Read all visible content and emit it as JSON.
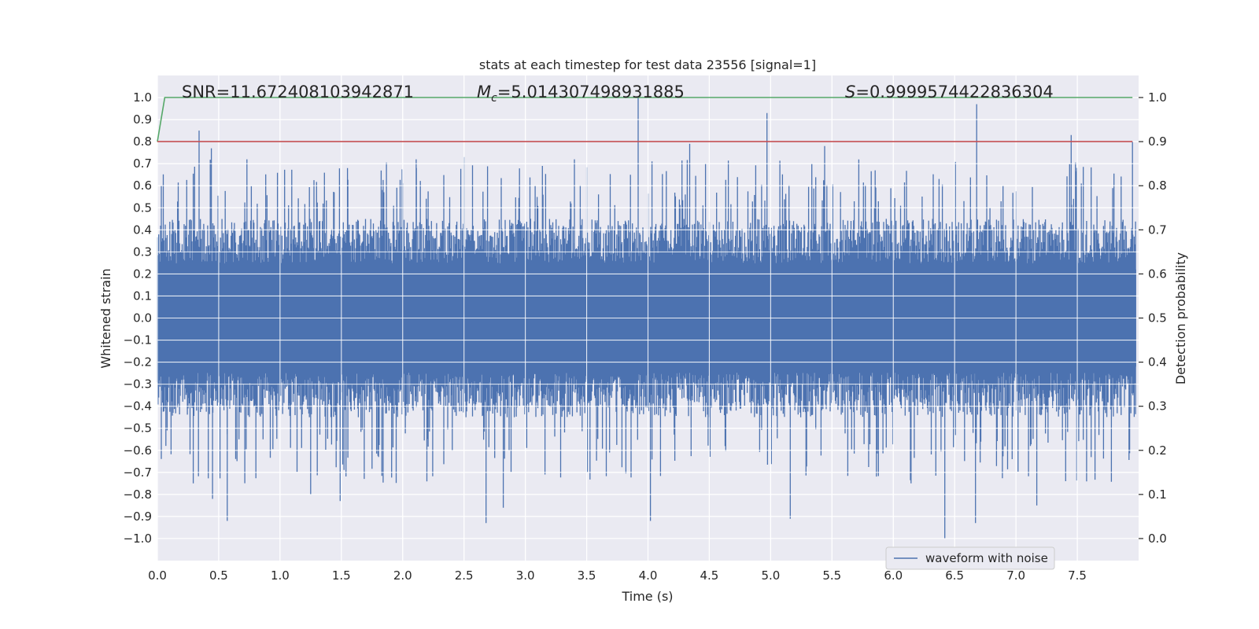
{
  "chart_data": {
    "type": "line",
    "title": "stats at each timestep for test data 23556 [signal=1]",
    "xlabel": "Time (s)",
    "ylabel_left": "Whitened strain",
    "ylabel_right": "Detection probability",
    "xlim": [
      0.0,
      8.0
    ],
    "ylim_left": [
      -1.1,
      1.1
    ],
    "ylim_right": [
      -0.05,
      1.05
    ],
    "x_ticks": [
      "0.0",
      "0.5",
      "1.0",
      "1.5",
      "2.0",
      "2.5",
      "3.0",
      "3.5",
      "4.0",
      "4.5",
      "5.0",
      "5.5",
      "6.0",
      "6.5",
      "7.0",
      "7.5"
    ],
    "y_ticks_left": [
      "1.0",
      "0.9",
      "0.8",
      "0.7",
      "0.6",
      "0.5",
      "0.4",
      "0.3",
      "0.2",
      "0.1",
      "0.0",
      "−0.1",
      "−0.2",
      "−0.3",
      "−0.4",
      "−0.5",
      "−0.6",
      "−0.7",
      "−0.8",
      "−0.9",
      "−1.0"
    ],
    "y_ticks_right": [
      "1.0",
      "0.9",
      "0.8",
      "0.7",
      "0.6",
      "0.5",
      "0.4",
      "0.3",
      "0.2",
      "0.1",
      "0.0"
    ],
    "grid": true,
    "legend_position": "lower-right",
    "annotations": {
      "snr": "SNR=11.672408103942871",
      "mc_symbol": "M",
      "mc_sub": "c",
      "mc_value": "=5.014307498931885",
      "s_symbol": "S",
      "s_value": "=0.9999574422836304"
    },
    "series": [
      {
        "name": "waveform with noise",
        "axis": "left",
        "style": "dense-noise",
        "envelope_upper_typical": 0.45,
        "envelope_lower_typical": -0.45,
        "peaks": [
          {
            "x": 0.34,
            "y": 0.85
          },
          {
            "x": 0.44,
            "y": 0.77
          },
          {
            "x": 0.73,
            "y": 0.72
          },
          {
            "x": 1.55,
            "y": 0.68
          },
          {
            "x": 2.11,
            "y": 0.72
          },
          {
            "x": 2.5,
            "y": 0.73
          },
          {
            "x": 3.4,
            "y": 0.72
          },
          {
            "x": 3.92,
            "y": 1.0
          },
          {
            "x": 4.34,
            "y": 0.79
          },
          {
            "x": 4.97,
            "y": 0.93
          },
          {
            "x": 5.44,
            "y": 0.78
          },
          {
            "x": 6.68,
            "y": 0.97
          },
          {
            "x": 7.45,
            "y": 0.83
          },
          {
            "x": 7.95,
            "y": 0.8
          }
        ],
        "troughs": [
          {
            "x": 0.57,
            "y": -0.92
          },
          {
            "x": 0.45,
            "y": -0.82
          },
          {
            "x": 1.25,
            "y": -0.8
          },
          {
            "x": 1.49,
            "y": -0.83
          },
          {
            "x": 2.68,
            "y": -0.93
          },
          {
            "x": 2.82,
            "y": -0.86
          },
          {
            "x": 4.02,
            "y": -0.92
          },
          {
            "x": 5.16,
            "y": -0.91
          },
          {
            "x": 6.42,
            "y": -1.0
          },
          {
            "x": 6.67,
            "y": -0.93
          },
          {
            "x": 7.17,
            "y": -0.85
          }
        ]
      },
      {
        "name": "",
        "axis": "right",
        "color": "#55a868",
        "x": [
          0.0,
          0.06,
          0.1,
          7.95
        ],
        "y": [
          0.9,
          1.0,
          1.0,
          1.0
        ]
      },
      {
        "name": "",
        "axis": "right",
        "color": "#c44e52",
        "x": [
          0.0,
          7.95
        ],
        "y": [
          0.9,
          0.9
        ]
      }
    ],
    "colors": {
      "background": "#eaeaf2",
      "grid": "#ffffff",
      "waveform": "#4c72b0"
    }
  }
}
